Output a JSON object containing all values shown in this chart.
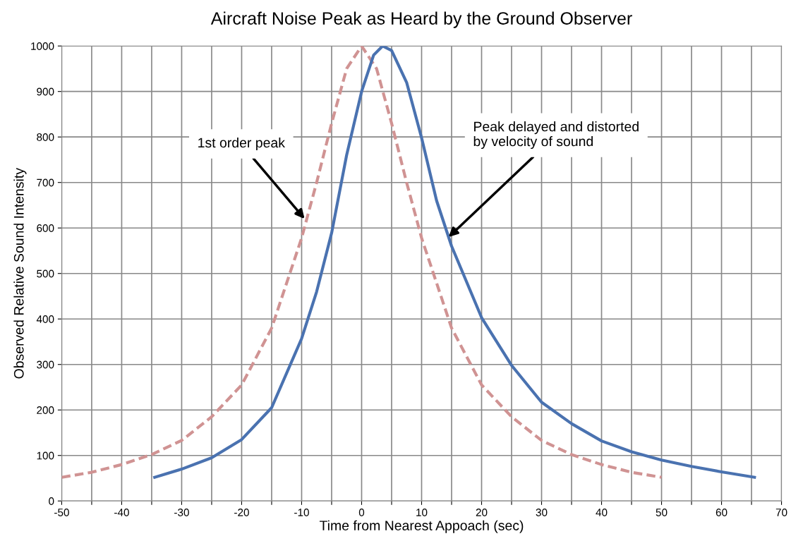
{
  "chart_data": {
    "type": "line",
    "title": "Aircraft Noise Peak as Heard by the Ground Observer",
    "xlabel": "Time from Nearest Appoach (sec)",
    "ylabel": "Observed Relative Sound Intensity",
    "xlim": [
      -50,
      70
    ],
    "ylim": [
      0,
      1000
    ],
    "xticks": [
      -50,
      {
        "value": -45,
        "label": null
      },
      -40,
      {
        "value": -35,
        "label": null
      },
      -30,
      {
        "value": -25,
        "label": null
      },
      -20,
      {
        "value": -15,
        "label": null
      },
      -10,
      {
        "value": -5,
        "label": null
      },
      0,
      {
        "value": 5,
        "label": null
      },
      10,
      {
        "value": 15,
        "label": null
      },
      20,
      {
        "value": 25,
        "label": null
      },
      30,
      {
        "value": 35,
        "label": null
      },
      40,
      {
        "value": 45,
        "label": null
      },
      50,
      {
        "value": 55,
        "label": null
      },
      60,
      {
        "value": 65,
        "label": null
      },
      70
    ],
    "yticks": [
      0,
      100,
      200,
      300,
      400,
      500,
      600,
      700,
      800,
      900,
      1000
    ],
    "grid": true,
    "legend": false,
    "marker": "none",
    "series": [
      {
        "color": "#d09393",
        "line_style": "dashed",
        "x": [
          -50,
          -45,
          -40,
          -35,
          -30,
          -25,
          -20,
          -15,
          -10,
          -7.5,
          -5,
          -2.5,
          0,
          2.5,
          5,
          7.5,
          10,
          15,
          20,
          25,
          30,
          35,
          40,
          45,
          50
        ],
        "values": [
          52,
          63,
          80,
          102,
          133,
          185,
          255,
          380,
          578,
          700,
          830,
          950,
          1000,
          950,
          830,
          700,
          578,
          380,
          255,
          185,
          133,
          102,
          80,
          63,
          52
        ]
      },
      {
        "color": "#4a72b0",
        "line_style": "solid",
        "x": [
          -34.5,
          -30,
          -25,
          -20,
          -15,
          -10,
          -7.5,
          -5,
          -2.5,
          0,
          2,
          3.5,
          5,
          7.5,
          10,
          12.5,
          15,
          20,
          25,
          30,
          35,
          40,
          45,
          50,
          55,
          60,
          65.5
        ],
        "values": [
          52,
          70,
          95,
          135,
          205,
          357,
          460,
          589,
          760,
          900,
          980,
          1000,
          990,
          920,
          798,
          660,
          560,
          403,
          298,
          217,
          170,
          132,
          108,
          90,
          76,
          64,
          52
        ]
      }
    ],
    "annotations": [
      {
        "text": "1st order peak",
        "x": -9.5,
        "y": 620
      },
      {
        "text": "Peak delayed and distorted\nby velocity of sound",
        "x": 14.5,
        "y": 580
      }
    ]
  }
}
